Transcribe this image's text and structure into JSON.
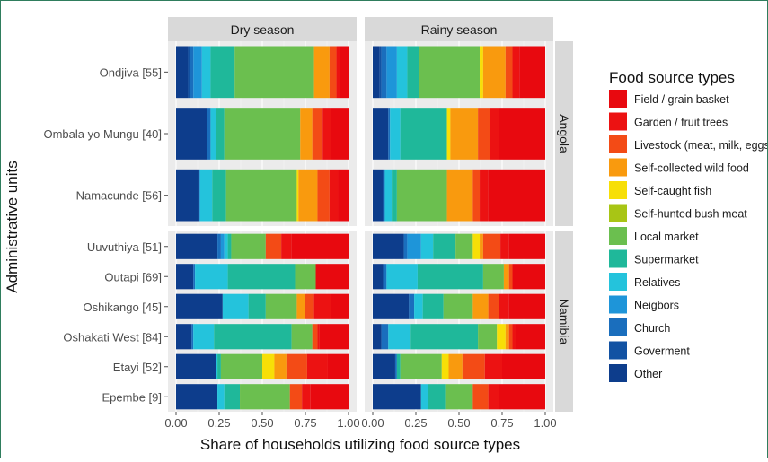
{
  "chart_data": {
    "type": "bar",
    "orientation": "horizontal",
    "stacked": true,
    "xlabel": "Share of households utilizing food source types",
    "ylabel": "Administrative units",
    "xlim": [
      0,
      1
    ],
    "xticks": [
      "0.00",
      "0.25",
      "0.50",
      "0.75",
      "1.00"
    ],
    "facets_columns": [
      "Dry season",
      "Rainy season"
    ],
    "facets_rows": [
      {
        "name": "Angola",
        "units": [
          "Ondjiva [55]",
          "Ombala yo Mungu [40]",
          "Namacunde [56]"
        ]
      },
      {
        "name": "Namibia",
        "units": [
          "Uuvuthiya [51]",
          "Outapi [69]",
          "Oshikango [45]",
          "Oshakati West [84]",
          "Etayi [52]",
          "Epembe [9]"
        ]
      }
    ],
    "legend_title": "Food source types",
    "legend_position": "right",
    "grid": true,
    "series": [
      {
        "name": "Other",
        "color": "#0d3d8c"
      },
      {
        "name": "Goverment",
        "color": "#1252a3"
      },
      {
        "name": "Church",
        "color": "#1a6ebd"
      },
      {
        "name": "Neigbors",
        "color": "#1e95d9"
      },
      {
        "name": "Relatives",
        "color": "#24c3dc"
      },
      {
        "name": "Supermarket",
        "color": "#1fb89a"
      },
      {
        "name": "Local market",
        "color": "#6bbf4f"
      },
      {
        "name": "Self-hunted bush meat",
        "color": "#a8c515"
      },
      {
        "name": "Self-caught fish",
        "color": "#f7df07"
      },
      {
        "name": "Self-collected wild food",
        "color": "#f99a0e"
      },
      {
        "name": "Livestock (meat, milk, eggs)",
        "color": "#f34b16"
      },
      {
        "name": "Garden / fruit trees",
        "color": "#ec1212"
      },
      {
        "name": "Field / grain basket",
        "color": "#e8090f"
      }
    ],
    "data": {
      "Dry season": {
        "Ondjiva [55]": [
          0.07,
          0.01,
          0.02,
          0.05,
          0.05,
          0.14,
          0.46,
          0.0,
          0.0,
          0.09,
          0.04,
          0.02,
          0.05
        ],
        "Ombala yo Mungu [40]": [
          0.18,
          0.0,
          0.02,
          0.0,
          0.03,
          0.05,
          0.44,
          0.0,
          0.0,
          0.07,
          0.06,
          0.05,
          0.1
        ],
        "Namacunde [56]": [
          0.13,
          0.0,
          0.0,
          0.01,
          0.07,
          0.08,
          0.41,
          0.0,
          0.01,
          0.11,
          0.07,
          0.05,
          0.06
        ],
        "Uuvuthiya [51]": [
          0.24,
          0.0,
          0.02,
          0.02,
          0.02,
          0.02,
          0.2,
          0.0,
          0.0,
          0.0,
          0.09,
          0.06,
          0.33
        ],
        "Outapi [69]": [
          0.1,
          0.0,
          0.01,
          0.0,
          0.19,
          0.39,
          0.12,
          0.0,
          0.0,
          0.0,
          0.0,
          0.0,
          0.19
        ],
        "Oshikango [45]": [
          0.27,
          0.0,
          0.0,
          0.0,
          0.15,
          0.1,
          0.18,
          0.0,
          0.0,
          0.05,
          0.05,
          0.1,
          0.1
        ],
        "Oshakati West [84]": [
          0.09,
          0.0,
          0.01,
          0.0,
          0.12,
          0.45,
          0.12,
          0.0,
          0.0,
          0.0,
          0.03,
          0.01,
          0.17
        ],
        "Etayi [52]": [
          0.23,
          0.0,
          0.0,
          0.0,
          0.01,
          0.02,
          0.24,
          0.0,
          0.07,
          0.07,
          0.12,
          0.12,
          0.12
        ],
        "Epembe [9]": [
          0.24,
          0.0,
          0.0,
          0.0,
          0.04,
          0.09,
          0.29,
          0.0,
          0.0,
          0.0,
          0.07,
          0.05,
          0.22
        ]
      },
      "Rainy season": {
        "Ondjiva [55]": [
          0.04,
          0.01,
          0.03,
          0.06,
          0.06,
          0.07,
          0.35,
          0.0,
          0.02,
          0.13,
          0.04,
          0.04,
          0.15
        ],
        "Ombala yo Mungu [40]": [
          0.09,
          0.0,
          0.01,
          0.0,
          0.06,
          0.27,
          0.0,
          0.0,
          0.02,
          0.16,
          0.07,
          0.05,
          0.27
        ],
        "Namacunde [56]": [
          0.06,
          0.0,
          0.01,
          0.0,
          0.04,
          0.03,
          0.29,
          0.0,
          0.0,
          0.15,
          0.04,
          0.05,
          0.33
        ],
        "Uuvuthiya [51]": [
          0.18,
          0.0,
          0.02,
          0.08,
          0.07,
          0.13,
          0.1,
          0.0,
          0.04,
          0.02,
          0.1,
          0.05,
          0.21
        ],
        "Outapi [69]": [
          0.06,
          0.0,
          0.02,
          0.0,
          0.18,
          0.38,
          0.12,
          0.0,
          0.0,
          0.03,
          0.02,
          0.0,
          0.19
        ],
        "Oshikango [45]": [
          0.21,
          0.0,
          0.03,
          0.0,
          0.05,
          0.12,
          0.17,
          0.0,
          0.0,
          0.09,
          0.06,
          0.06,
          0.21
        ],
        "Oshakati West [84]": [
          0.05,
          0.0,
          0.04,
          0.0,
          0.13,
          0.39,
          0.11,
          0.0,
          0.05,
          0.02,
          0.02,
          0.02,
          0.17
        ],
        "Etayi [52]": [
          0.13,
          0.0,
          0.01,
          0.0,
          0.0,
          0.02,
          0.24,
          0.0,
          0.04,
          0.08,
          0.13,
          0.1,
          0.25
        ],
        "Epembe [9]": [
          0.28,
          0.0,
          0.0,
          0.0,
          0.04,
          0.1,
          0.16,
          0.0,
          0.0,
          0.0,
          0.09,
          0.06,
          0.27
        ]
      }
    }
  }
}
